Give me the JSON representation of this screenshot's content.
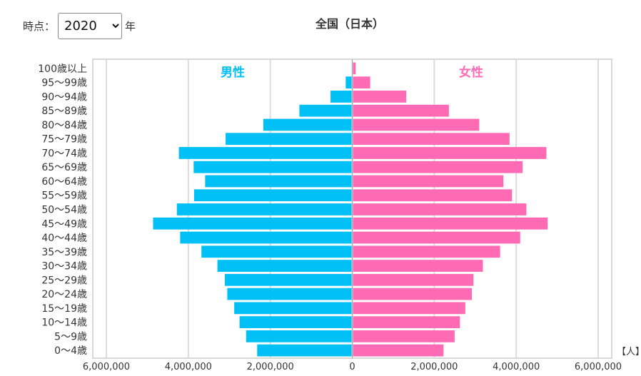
{
  "controls": {
    "year_label": "時点：",
    "year_value": "2020",
    "year_options": [
      "2020"
    ],
    "year_unit": "年"
  },
  "chart_data": {
    "type": "bar",
    "title": "全国（日本）",
    "unit_label": "【人】",
    "categories": [
      "100歳以上",
      "95〜99歳",
      "90〜94歳",
      "85〜89歳",
      "80〜84歳",
      "75〜79歳",
      "70〜74歳",
      "65〜69歳",
      "60〜64歳",
      "55〜59歳",
      "50〜54歳",
      "45〜49歳",
      "40〜44歳",
      "35〜39歳",
      "30〜34歳",
      "25〜29歳",
      "20〜24歳",
      "15〜19歳",
      "10〜14歳",
      "5〜9歳",
      "0〜4歳"
    ],
    "series": [
      {
        "name": "男性",
        "color": "#00c0f5",
        "values": [
          14000,
          160000,
          530000,
          1290000,
          2170000,
          3090000,
          4230000,
          3870000,
          3590000,
          3860000,
          4280000,
          4860000,
          4200000,
          3680000,
          3290000,
          3110000,
          3050000,
          2880000,
          2750000,
          2590000,
          2320000
        ]
      },
      {
        "name": "女性",
        "color": "#ff6ab4",
        "values": [
          66000,
          420000,
          1300000,
          2340000,
          3080000,
          3820000,
          4720000,
          4140000,
          3670000,
          3880000,
          4230000,
          4750000,
          4080000,
          3590000,
          3170000,
          2940000,
          2900000,
          2740000,
          2610000,
          2480000,
          2210000
        ]
      }
    ],
    "x_ticks": [
      "6,000,000",
      "4,000,000",
      "2,000,000",
      "0",
      "2,000,000",
      "4,000,000",
      "6,000,000"
    ],
    "xlim": [
      -6000000,
      6000000
    ],
    "grid": true
  }
}
